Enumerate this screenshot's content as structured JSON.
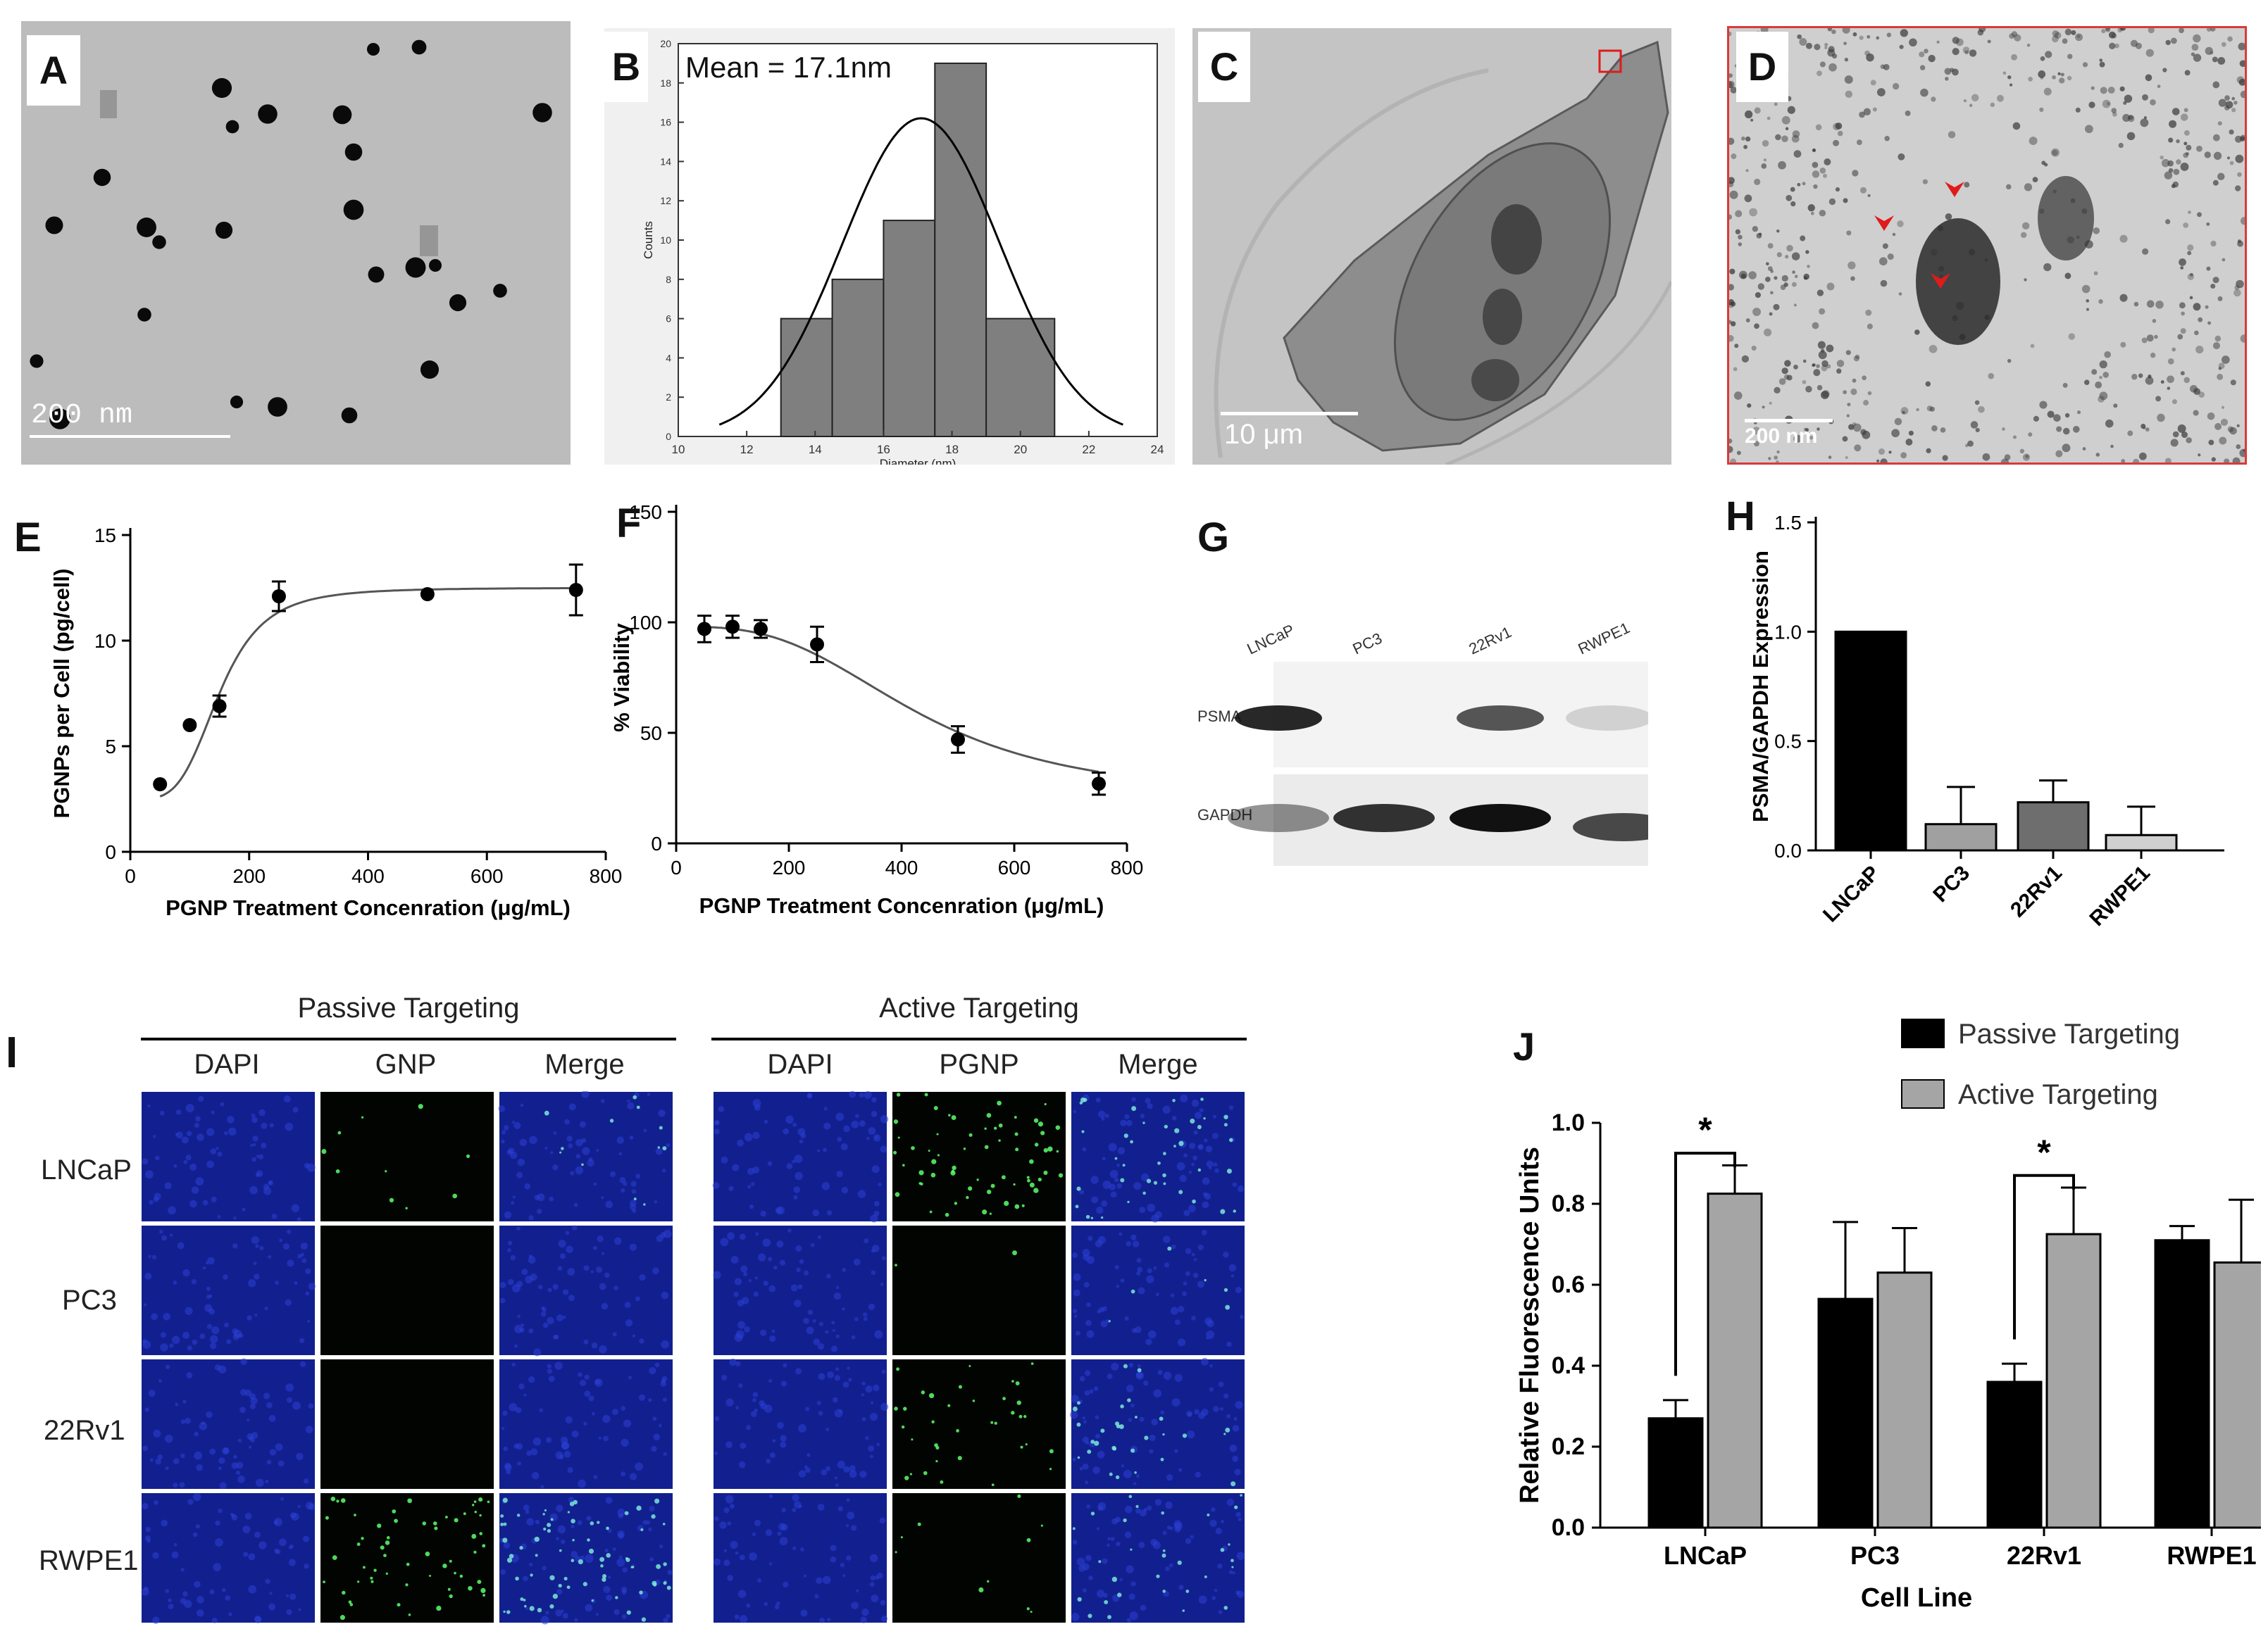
{
  "colors": {
    "tem_bg": "#bcbcbc",
    "histogram_bar": "#7f7f7f",
    "arrow_red": "#e01b1b",
    "panel_d_border": "#d93a3a",
    "dapi_blue": "#12208f",
    "fluor_green": "#5cff6a",
    "passive_bar": "#000000",
    "active_bar": "#a5a5a5",
    "h_lncap": "#000000",
    "h_pc3": "#a0a0a0",
    "h_22rv1": "#6e6e6e",
    "h_rwpe1": "#d0d0d0"
  },
  "panels": {
    "a": {
      "letter": "A",
      "scale_bar": "200 nm"
    },
    "b": {
      "letter": "B"
    },
    "c": {
      "letter": "C",
      "scale_bar": "10 μm"
    },
    "d": {
      "letter": "D",
      "scale_bar": "200 nm"
    },
    "e": {
      "letter": "E"
    },
    "f": {
      "letter": "F"
    },
    "g": {
      "letter": "G",
      "lanes": [
        "LNCaP",
        "PC3",
        "22Rv1",
        "RWPE1"
      ],
      "rows": [
        "PSMA",
        "GAPDH"
      ],
      "psma_intensity": [
        0.9,
        0.0,
        0.7,
        0.15
      ],
      "gapdh_intensity": [
        0.45,
        0.85,
        1.0,
        0.75
      ]
    },
    "h": {
      "letter": "H"
    },
    "i": {
      "letter": "I",
      "group_passive": "Passive Targeting",
      "group_active": "Active Targeting",
      "passive_columns": [
        "DAPI",
        "GNP",
        "Merge"
      ],
      "active_columns": [
        "DAPI",
        "PGNP",
        "Merge"
      ],
      "rows": [
        "LNCaP",
        "PC3",
        "22Rv1",
        "RWPE1"
      ]
    },
    "j": {
      "letter": "J"
    }
  },
  "chart_data": [
    {
      "id": "B",
      "type": "bar",
      "annotation": "Mean = 17.1nm",
      "xlabel": "Diameter (nm)",
      "ylabel": "Counts",
      "xlim": [
        10,
        24
      ],
      "ylim": [
        0,
        20
      ],
      "x_ticks": [
        10,
        12,
        14,
        16,
        18,
        20,
        22,
        24
      ],
      "y_ticks": [
        0,
        2,
        4,
        6,
        8,
        10,
        12,
        14,
        16,
        18,
        20
      ],
      "bins": [
        {
          "from": 13,
          "to": 14.5,
          "count": 6
        },
        {
          "from": 14.5,
          "to": 16,
          "count": 8
        },
        {
          "from": 16,
          "to": 17.5,
          "count": 11
        },
        {
          "from": 17.5,
          "to": 19,
          "count": 19
        },
        {
          "from": 19,
          "to": 21,
          "count": 6
        }
      ],
      "normal_fit": {
        "mean": 17.1,
        "sd": 2.3,
        "peak": 16.2,
        "range": [
          11.2,
          23
        ]
      }
    },
    {
      "id": "E",
      "type": "scatter",
      "xlabel": "PGNP Treatment Concenration (μg/mL)",
      "ylabel": "PGNPs per Cell (pg/cell)",
      "xlim": [
        0,
        800
      ],
      "ylim": [
        0,
        15
      ],
      "x_ticks": [
        0,
        200,
        400,
        600,
        800
      ],
      "y_ticks": [
        0,
        5,
        10,
        15
      ],
      "x": [
        50,
        100,
        150,
        250,
        500,
        750
      ],
      "y": [
        3.2,
        6.0,
        6.9,
        12.1,
        12.2,
        12.4
      ],
      "error": [
        0,
        0,
        0.5,
        0.7,
        0,
        1.2
      ],
      "fit": {
        "bottom": 2.5,
        "top": 12.5,
        "ec50": 150,
        "hill": 4
      }
    },
    {
      "id": "F",
      "type": "scatter",
      "xlabel": "PGNP Treatment Concenration (μg/mL)",
      "ylabel": "% Viability",
      "xlim": [
        0,
        800
      ],
      "ylim": [
        0,
        150
      ],
      "x_ticks": [
        0,
        200,
        400,
        600,
        800
      ],
      "y_ticks": [
        0,
        50,
        100,
        150
      ],
      "x": [
        50,
        100,
        150,
        250,
        500,
        750
      ],
      "y": [
        97,
        98,
        97,
        90,
        47,
        27
      ],
      "error": [
        6,
        5,
        4,
        8,
        6,
        5
      ],
      "fit": {
        "bottom": 20,
        "top": 98,
        "ec50": 430,
        "hill": 3
      }
    },
    {
      "id": "H",
      "type": "bar",
      "ylabel": "PSMA/GAPDH Expression",
      "categories": [
        "LNCaP",
        "PC3",
        "22Rv1",
        "RWPE1"
      ],
      "values": [
        1.0,
        0.12,
        0.22,
        0.07
      ],
      "errors": [
        0,
        0.17,
        0.1,
        0.13
      ],
      "ylim": [
        0,
        1.5
      ],
      "y_ticks": [
        "0.0",
        "0.5",
        "1.0",
        "1.5"
      ]
    },
    {
      "id": "J",
      "type": "bar",
      "xlabel": "Cell Line",
      "ylabel": "Relative Fluorescence Units",
      "categories": [
        "LNCaP",
        "PC3",
        "22Rv1",
        "RWPE1"
      ],
      "ylim": [
        0,
        1.0
      ],
      "y_ticks": [
        "0.0",
        "0.2",
        "0.4",
        "0.6",
        "0.8",
        "1.0"
      ],
      "series": [
        {
          "name": "Passive Targeting",
          "values": [
            0.27,
            0.565,
            0.36,
            0.71
          ],
          "errors": [
            0.045,
            0.19,
            0.045,
            0.035
          ]
        },
        {
          "name": "Active Targeting",
          "values": [
            0.825,
            0.63,
            0.725,
            0.655
          ],
          "errors": [
            0.07,
            0.11,
            0.115,
            0.155
          ]
        }
      ],
      "significance": [
        {
          "category": "LNCaP",
          "label": "*"
        },
        {
          "category": "22Rv1",
          "label": "*"
        }
      ]
    }
  ]
}
